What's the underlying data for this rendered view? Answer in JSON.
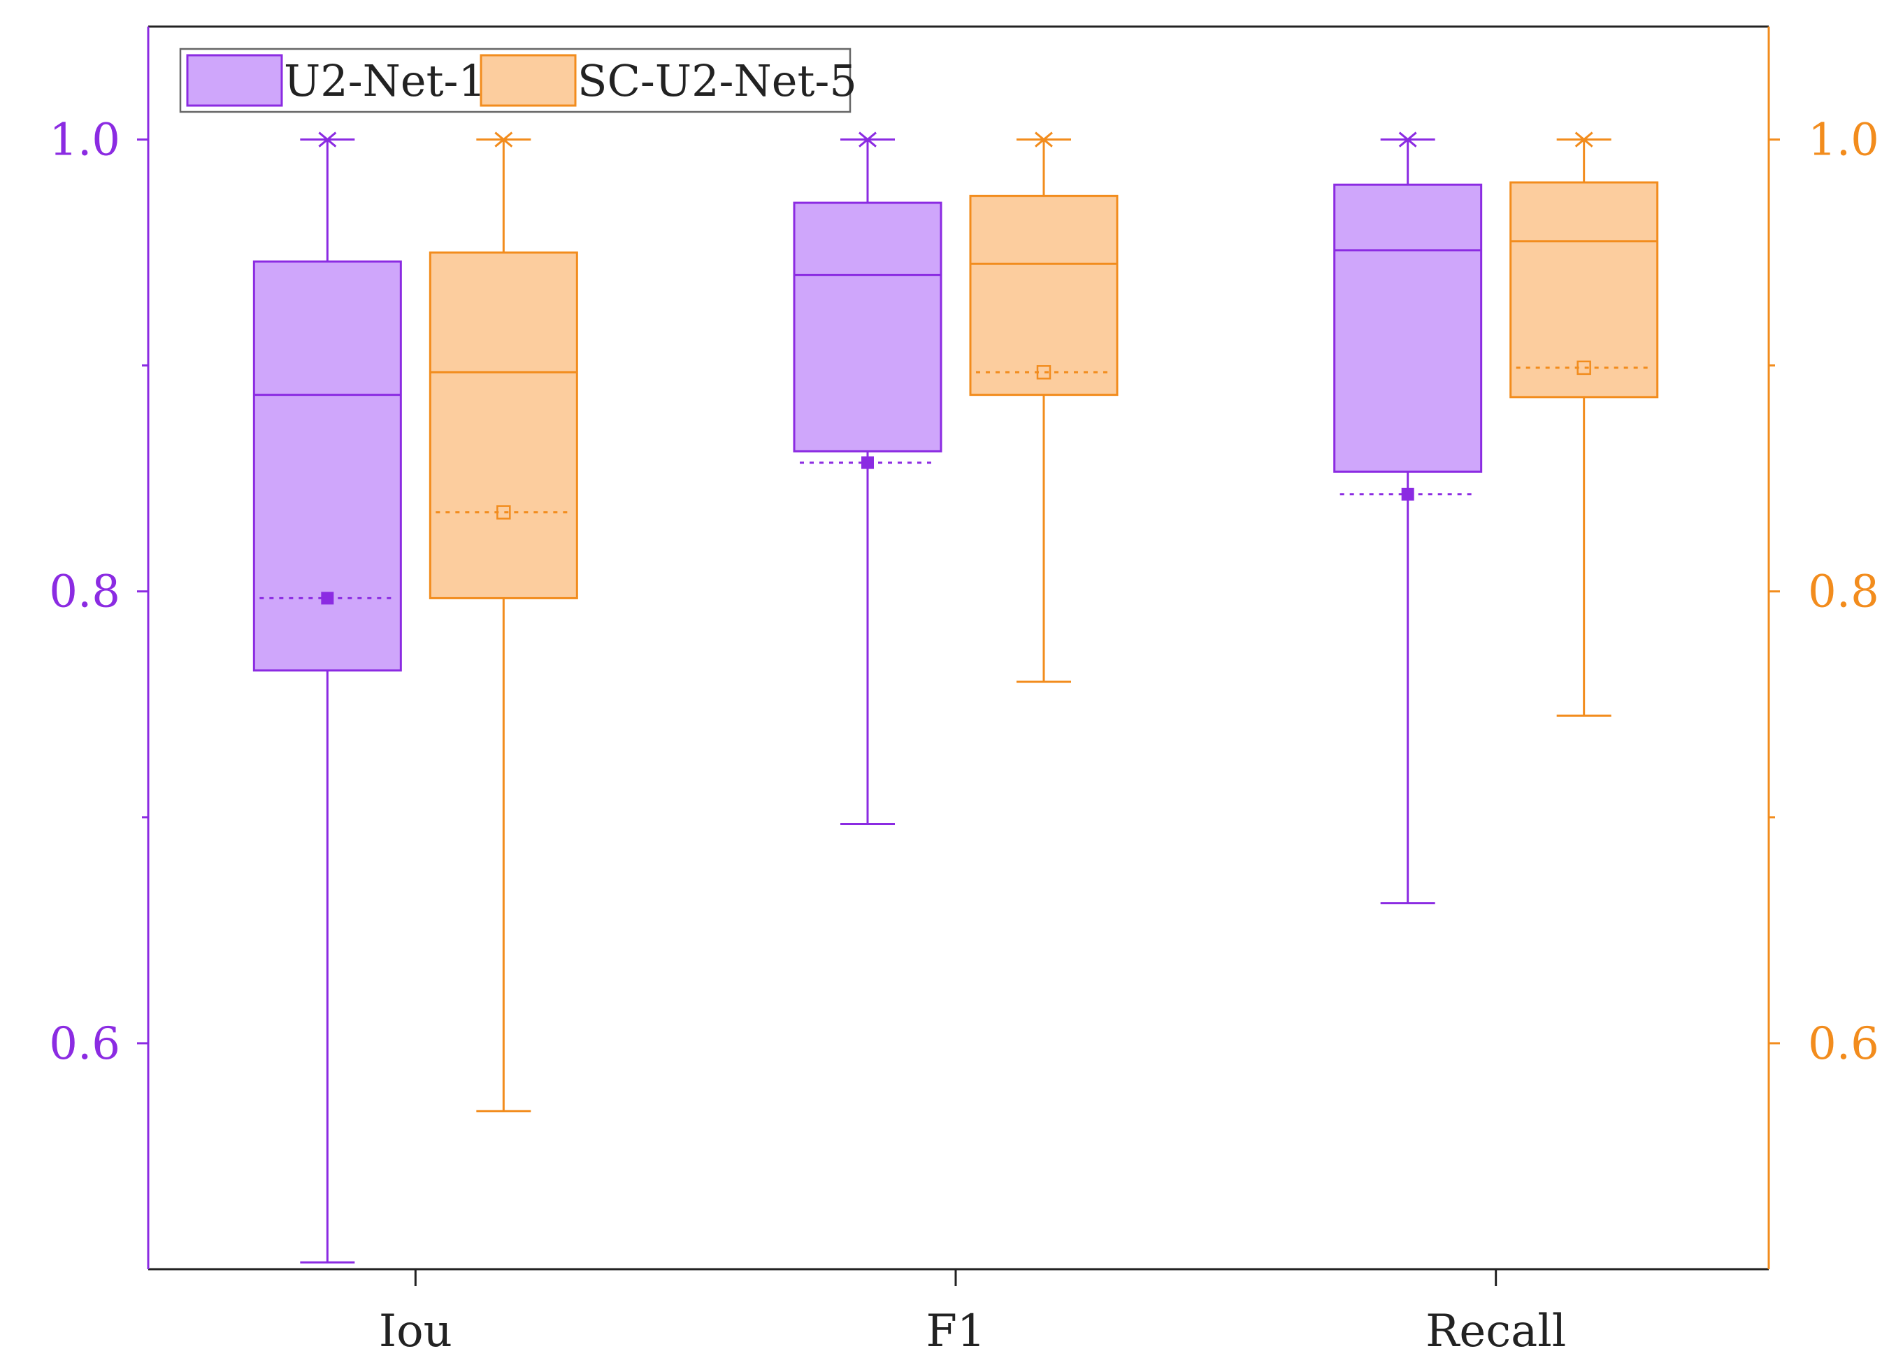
{
  "chart_data": {
    "type": "box",
    "categories": [
      "Iou",
      "F1",
      "Recall"
    ],
    "ylim": [
      0.5,
      1.05
    ],
    "yticks": [
      0.6,
      0.8,
      1.0
    ],
    "ytick_labels": [
      "0.6",
      "0.8",
      "1.0"
    ],
    "minor_yticks": [
      0.7,
      0.9
    ],
    "grid": false,
    "legend_position": "top-left",
    "series": [
      {
        "name": "U2-Net-1",
        "color": "#8B2BE2",
        "fill": "#CFA6FB",
        "boxes": [
          {
            "min": 0.503,
            "q1": 0.765,
            "median": 0.887,
            "q3": 0.946,
            "max": 1.0,
            "mean": 0.797
          },
          {
            "min": 0.697,
            "q1": 0.862,
            "median": 0.94,
            "q3": 0.972,
            "max": 1.0,
            "mean": 0.857
          },
          {
            "min": 0.662,
            "q1": 0.853,
            "median": 0.951,
            "q3": 0.98,
            "max": 1.0,
            "mean": 0.843
          }
        ]
      },
      {
        "name": "SC-U2-Net-5",
        "color": "#F28C1D",
        "fill": "#FCCD9E",
        "boxes": [
          {
            "min": 0.57,
            "q1": 0.797,
            "median": 0.897,
            "q3": 0.95,
            "max": 1.0,
            "mean": 0.835
          },
          {
            "min": 0.76,
            "q1": 0.887,
            "median": 0.945,
            "q3": 0.975,
            "max": 1.0,
            "mean": 0.897
          },
          {
            "min": 0.745,
            "q1": 0.886,
            "median": 0.955,
            "q3": 0.981,
            "max": 1.0,
            "mean": 0.899
          }
        ]
      }
    ]
  },
  "colors": {
    "axis": "#222222",
    "left_axis": "#8B2BE2",
    "right_axis": "#F28C1D"
  }
}
